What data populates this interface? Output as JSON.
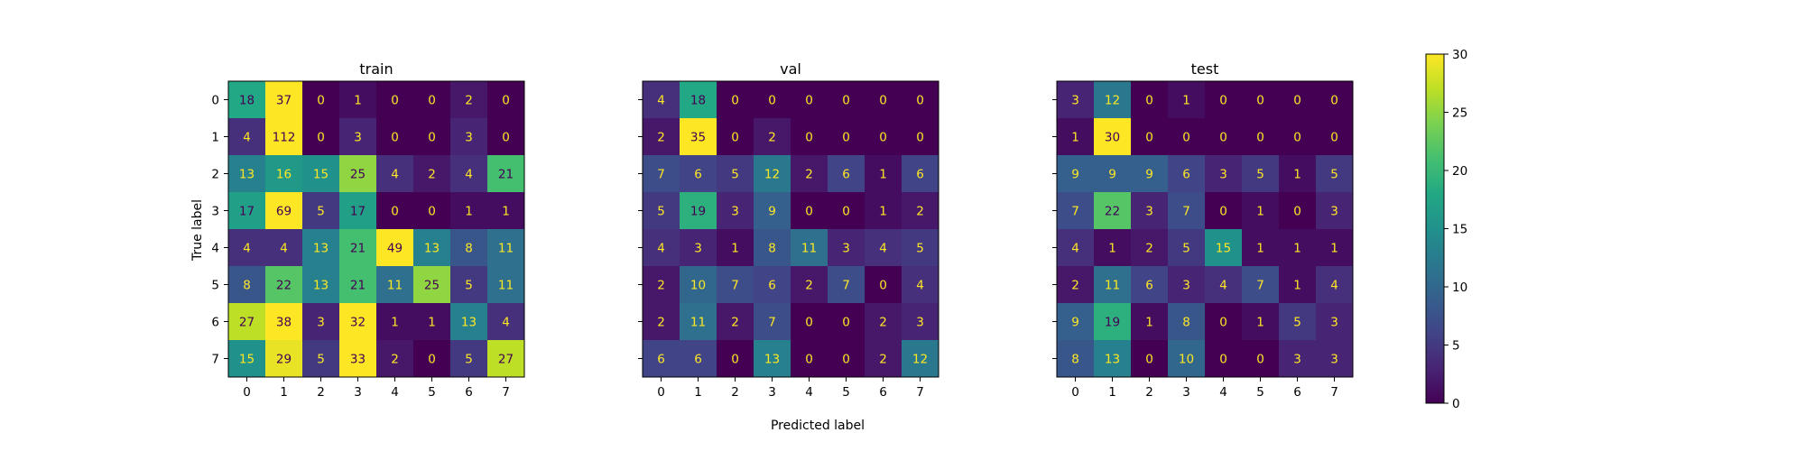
{
  "figure": {
    "ylabel": "True label",
    "xlabel": "Predicted label"
  },
  "colorbar": {
    "colormap": "viridis",
    "range": [
      0,
      30
    ],
    "ticks": [
      0,
      5,
      10,
      15,
      20,
      25,
      30
    ]
  },
  "chart_data": [
    {
      "type": "heatmap",
      "title": "train",
      "x_ticks": [
        "0",
        "1",
        "2",
        "3",
        "4",
        "5",
        "6",
        "7"
      ],
      "y_ticks": [
        "0",
        "1",
        "2",
        "3",
        "4",
        "5",
        "6",
        "7"
      ],
      "matrix": [
        [
          18,
          37,
          0,
          1,
          0,
          0,
          2,
          0
        ],
        [
          4,
          112,
          0,
          3,
          0,
          0,
          3,
          0
        ],
        [
          13,
          16,
          15,
          25,
          4,
          2,
          4,
          21
        ],
        [
          17,
          69,
          5,
          17,
          0,
          0,
          1,
          1
        ],
        [
          4,
          4,
          13,
          21,
          49,
          13,
          8,
          11
        ],
        [
          8,
          22,
          13,
          21,
          11,
          25,
          5,
          11
        ],
        [
          27,
          38,
          3,
          32,
          1,
          1,
          13,
          4
        ],
        [
          15,
          29,
          5,
          33,
          2,
          0,
          5,
          27
        ]
      ],
      "show_y_tick_labels": true
    },
    {
      "type": "heatmap",
      "title": "val",
      "x_ticks": [
        "0",
        "1",
        "2",
        "3",
        "4",
        "5",
        "6",
        "7"
      ],
      "y_ticks": [
        "0",
        "1",
        "2",
        "3",
        "4",
        "5",
        "6",
        "7"
      ],
      "matrix": [
        [
          4,
          18,
          0,
          0,
          0,
          0,
          0,
          0
        ],
        [
          2,
          35,
          0,
          2,
          0,
          0,
          0,
          0
        ],
        [
          7,
          6,
          5,
          12,
          2,
          6,
          1,
          6
        ],
        [
          5,
          19,
          3,
          9,
          0,
          0,
          1,
          2
        ],
        [
          4,
          3,
          1,
          8,
          11,
          3,
          4,
          5
        ],
        [
          2,
          10,
          7,
          6,
          2,
          7,
          0,
          4
        ],
        [
          2,
          11,
          2,
          7,
          0,
          0,
          2,
          3
        ],
        [
          6,
          6,
          0,
          13,
          0,
          0,
          2,
          12
        ]
      ],
      "show_y_tick_labels": false
    },
    {
      "type": "heatmap",
      "title": "test",
      "x_ticks": [
        "0",
        "1",
        "2",
        "3",
        "4",
        "5",
        "6",
        "7"
      ],
      "y_ticks": [
        "0",
        "1",
        "2",
        "3",
        "4",
        "5",
        "6",
        "7"
      ],
      "matrix": [
        [
          3,
          12,
          0,
          1,
          0,
          0,
          0,
          0
        ],
        [
          1,
          30,
          0,
          0,
          0,
          0,
          0,
          0
        ],
        [
          9,
          9,
          9,
          6,
          3,
          5,
          1,
          5
        ],
        [
          7,
          22,
          3,
          7,
          0,
          1,
          0,
          3
        ],
        [
          4,
          1,
          2,
          5,
          15,
          1,
          1,
          1
        ],
        [
          2,
          11,
          6,
          3,
          4,
          7,
          1,
          4
        ],
        [
          9,
          19,
          1,
          8,
          0,
          1,
          5,
          3
        ],
        [
          8,
          13,
          0,
          10,
          0,
          0,
          3,
          3
        ]
      ],
      "show_y_tick_labels": false
    }
  ]
}
